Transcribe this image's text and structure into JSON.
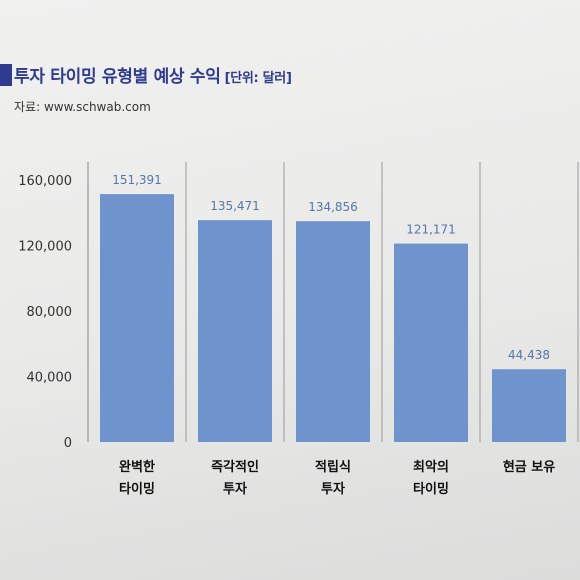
{
  "header": {
    "title": "투자 타이밍 유형별 예상 수익",
    "unit": "[단위: 달러]",
    "source": "자료: www.schwab.com"
  },
  "colors": {
    "bar": "#6f93cc",
    "title": "#2f3b8f",
    "data_label": "#5577aa"
  },
  "chart_data": {
    "type": "bar",
    "title": "투자 타이밍 유형별 예상 수익",
    "subtitle": "[단위: 달러]",
    "xlabel": "",
    "ylabel": "",
    "ylim": [
      0,
      160000
    ],
    "yticks": [
      0,
      40000,
      80000,
      120000,
      160000
    ],
    "ytick_labels": [
      "0",
      "40,000",
      "80,000",
      "120,000",
      "160,000"
    ],
    "categories": [
      [
        "완벽한",
        "타이밍"
      ],
      [
        "즉각적인",
        "투자"
      ],
      [
        "적립식",
        "투자"
      ],
      [
        "최악의",
        "타이밍"
      ],
      [
        "현금 보유"
      ]
    ],
    "values": [
      151391,
      135471,
      134856,
      121171,
      44438
    ],
    "value_labels": [
      "151,391",
      "135,471",
      "134,856",
      "121,171",
      "44,438"
    ],
    "grid": false,
    "legend": "none"
  }
}
